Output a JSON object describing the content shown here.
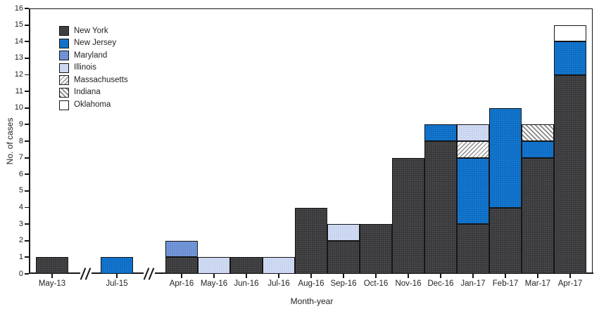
{
  "chart_data": {
    "type": "bar",
    "stacked": true,
    "title": "",
    "xlabel": "Month-year",
    "ylabel": "No. of cases",
    "ylim": [
      0,
      16
    ],
    "y_tick_step": 1,
    "grid": false,
    "legend_position": "upper-left-inside",
    "categories": [
      "May-13",
      "Jul-15",
      "Apr-16",
      "May-16",
      "Jun-16",
      "Jul-16",
      "Aug-16",
      "Sep-16",
      "Oct-16",
      "Nov-16",
      "Dec-16",
      "Jan-17",
      "Feb-17",
      "Mar-17",
      "Apr-17"
    ],
    "axis_breaks_after": [
      "May-13",
      "Jul-15"
    ],
    "series": [
      {
        "name": "New York",
        "values": [
          1,
          0,
          1,
          0,
          1,
          0,
          4,
          2,
          3,
          7,
          8,
          3,
          4,
          7,
          12
        ]
      },
      {
        "name": "New Jersey",
        "values": [
          0,
          1,
          0,
          0,
          0,
          0,
          0,
          0,
          0,
          0,
          1,
          4,
          6,
          1,
          2
        ]
      },
      {
        "name": "Maryland",
        "values": [
          0,
          0,
          1,
          0,
          0,
          0,
          0,
          0,
          0,
          0,
          0,
          0,
          0,
          0,
          0
        ]
      },
      {
        "name": "Illinois",
        "values": [
          0,
          0,
          0,
          1,
          0,
          1,
          0,
          1,
          0,
          0,
          0,
          1,
          0,
          0,
          0
        ]
      },
      {
        "name": "Massachusetts",
        "values": [
          0,
          0,
          0,
          0,
          0,
          0,
          0,
          0,
          0,
          0,
          0,
          1,
          0,
          0,
          0
        ]
      },
      {
        "name": "Indiana",
        "values": [
          0,
          0,
          0,
          0,
          0,
          0,
          0,
          0,
          0,
          0,
          0,
          0,
          0,
          1,
          0
        ]
      },
      {
        "name": "Oklahoma",
        "values": [
          0,
          0,
          0,
          0,
          0,
          0,
          0,
          0,
          0,
          0,
          0,
          0,
          0,
          0,
          1
        ]
      }
    ],
    "stacks": [
      [
        {
          "state": "New York",
          "value": 1
        }
      ],
      [
        {
          "state": "New Jersey",
          "value": 1
        }
      ],
      [
        {
          "state": "New York",
          "value": 1
        },
        {
          "state": "Maryland",
          "value": 1
        }
      ],
      [
        {
          "state": "Illinois",
          "value": 1
        }
      ],
      [
        {
          "state": "New York",
          "value": 1
        }
      ],
      [
        {
          "state": "Illinois",
          "value": 1
        }
      ],
      [
        {
          "state": "New York",
          "value": 4
        }
      ],
      [
        {
          "state": "New York",
          "value": 2
        },
        {
          "state": "Illinois",
          "value": 1
        }
      ],
      [
        {
          "state": "New York",
          "value": 3
        }
      ],
      [
        {
          "state": "New York",
          "value": 7
        }
      ],
      [
        {
          "state": "New York",
          "value": 8
        },
        {
          "state": "New Jersey",
          "value": 1
        }
      ],
      [
        {
          "state": "New York",
          "value": 3
        },
        {
          "state": "New Jersey",
          "value": 4
        },
        {
          "state": "Massachusetts",
          "value": 1
        },
        {
          "state": "Illinois",
          "value": 1
        }
      ],
      [
        {
          "state": "New York",
          "value": 4
        },
        {
          "state": "New Jersey",
          "value": 6
        }
      ],
      [
        {
          "state": "New York",
          "value": 7
        },
        {
          "state": "New Jersey",
          "value": 1
        },
        {
          "state": "Indiana",
          "value": 1
        }
      ],
      [
        {
          "state": "New York",
          "value": 12
        },
        {
          "state": "New Jersey",
          "value": 2
        },
        {
          "state": "Oklahoma",
          "value": 1
        }
      ]
    ],
    "totals": [
      1,
      1,
      2,
      1,
      1,
      1,
      4,
      3,
      3,
      7,
      9,
      9,
      10,
      9,
      15
    ]
  },
  "legend": {
    "items": [
      {
        "label": "New York",
        "pattern": "dotted-dark"
      },
      {
        "label": "New Jersey",
        "pattern": "solid-blue"
      },
      {
        "label": "Maryland",
        "pattern": "solid-medium-blue"
      },
      {
        "label": "Illinois",
        "pattern": "solid-light-blue"
      },
      {
        "label": "Massachusetts",
        "pattern": "hatch-forward"
      },
      {
        "label": "Indiana",
        "pattern": "hatch-back"
      },
      {
        "label": "Oklahoma",
        "pattern": "white"
      }
    ]
  },
  "colors": {
    "new_york": "#3a3a3c",
    "new_jersey": "#0c6ec6",
    "maryland": "#6a8ed3",
    "illinois": "#c8d4ef",
    "hatch_gray": "#8c8c8c",
    "oklahoma": "#ffffff",
    "axis": "#161616",
    "text": "#231f20"
  }
}
